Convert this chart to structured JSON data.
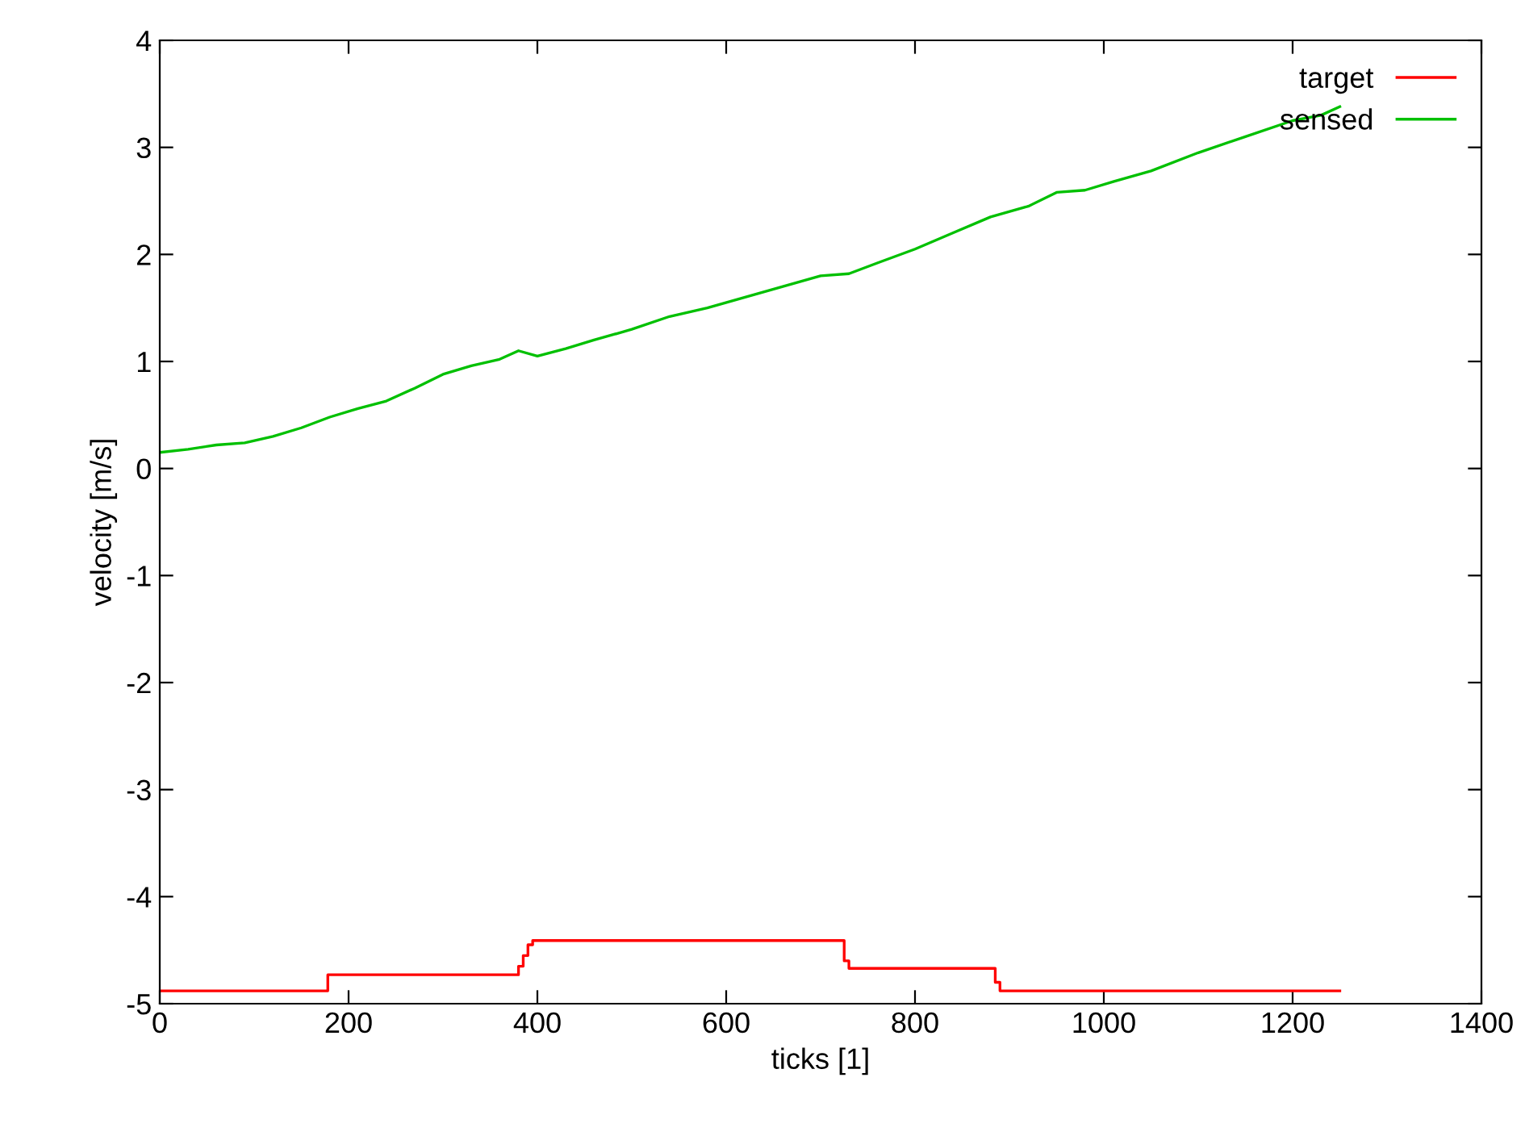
{
  "chart_data": {
    "type": "line",
    "xlabel": "ticks [1]",
    "ylabel": "velocity [m/s]",
    "xlim": [
      0,
      1400
    ],
    "xticks": [
      0,
      200,
      400,
      600,
      800,
      1000,
      1200,
      1400
    ],
    "ylim": [
      -5,
      4
    ],
    "yticks": [
      -5,
      -4,
      -3,
      -2,
      -1,
      0,
      1,
      2,
      3,
      4
    ],
    "grid": false,
    "legend": "top right",
    "marker": "none",
    "line_style": "solid",
    "series": [
      {
        "name": "target",
        "color": "#ff0000",
        "type": "step",
        "x": [
          0,
          176,
          178,
          375,
          380,
          385,
          390,
          395,
          720,
          725,
          730,
          880,
          885,
          890,
          1250
        ],
        "values": [
          -4.88,
          -4.88,
          -4.73,
          -4.73,
          -4.65,
          -4.55,
          -4.45,
          -4.41,
          -4.41,
          -4.6,
          -4.67,
          -4.67,
          -4.8,
          -4.88,
          -4.88
        ]
      },
      {
        "name": "sensed",
        "color": "#00c000",
        "x": [
          0,
          30,
          60,
          90,
          120,
          150,
          180,
          210,
          240,
          270,
          300,
          330,
          360,
          380,
          400,
          430,
          460,
          500,
          540,
          580,
          620,
          660,
          700,
          730,
          760,
          800,
          840,
          880,
          920,
          950,
          980,
          1010,
          1050,
          1100,
          1150,
          1200,
          1230,
          1250
        ],
        "values": [
          0.15,
          0.18,
          0.22,
          0.24,
          0.3,
          0.38,
          0.48,
          0.56,
          0.63,
          0.75,
          0.88,
          0.96,
          1.02,
          1.1,
          1.05,
          1.12,
          1.2,
          1.3,
          1.42,
          1.5,
          1.6,
          1.7,
          1.8,
          1.82,
          1.92,
          2.05,
          2.2,
          2.35,
          2.45,
          2.58,
          2.6,
          2.68,
          2.78,
          2.95,
          3.1,
          3.25,
          3.3,
          3.38
        ]
      }
    ]
  }
}
